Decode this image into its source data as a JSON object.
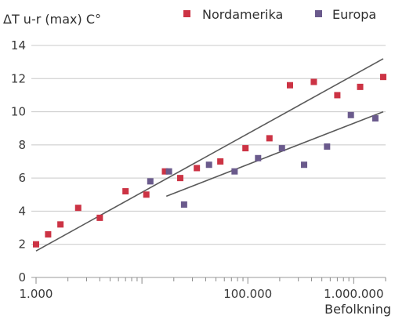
{
  "chart_data": {
    "type": "scatter",
    "title": "",
    "ylabel": "ΔT u-r (max) C°",
    "xlabel": "Befolkning",
    "x_scale": "log",
    "xlim": [
      1000,
      2000000
    ],
    "ylim": [
      0,
      14
    ],
    "y_ticks": [
      0,
      2,
      4,
      6,
      8,
      10,
      12,
      14
    ],
    "y_tick_labels": [
      "0",
      "2",
      "4",
      "6",
      "8",
      "10",
      "12",
      "14"
    ],
    "x_ticks": [
      1000,
      100000,
      1000000
    ],
    "x_tick_labels": [
      "1.000",
      "100.000",
      "1.000.000"
    ],
    "grid": "horizontal",
    "legend_position": "top-right",
    "series": [
      {
        "name": "Nordamerika",
        "color": "#cc3344",
        "points": [
          [
            1000,
            2.0
          ],
          [
            1300,
            2.6
          ],
          [
            1700,
            3.2
          ],
          [
            2500,
            4.2
          ],
          [
            4000,
            3.6
          ],
          [
            7000,
            5.2
          ],
          [
            11000,
            5.0
          ],
          [
            16500,
            6.4
          ],
          [
            23000,
            6.0
          ],
          [
            33000,
            6.6
          ],
          [
            55000,
            7.0
          ],
          [
            95000,
            7.8
          ],
          [
            160000,
            8.4
          ],
          [
            250000,
            11.6
          ],
          [
            420000,
            11.8
          ],
          [
            700000,
            11.0
          ],
          [
            1150000,
            11.5
          ],
          [
            1900000,
            12.1
          ]
        ]
      },
      {
        "name": "Europa",
        "color": "#6a5a8c",
        "points": [
          [
            12000,
            5.8
          ],
          [
            18000,
            6.4
          ],
          [
            25000,
            4.4
          ],
          [
            43000,
            6.8
          ],
          [
            75000,
            6.4
          ],
          [
            125000,
            7.2
          ],
          [
            210000,
            7.8
          ],
          [
            340000,
            6.8
          ],
          [
            560000,
            7.9
          ],
          [
            940000,
            9.8
          ],
          [
            1600000,
            9.6
          ]
        ]
      }
    ],
    "trend_lines": [
      {
        "series": "Nordamerika",
        "from": [
          1000,
          1.6
        ],
        "to": [
          1900000,
          13.2
        ]
      },
      {
        "series": "Europa",
        "from": [
          17000,
          4.9
        ],
        "to": [
          1900000,
          10.0
        ]
      }
    ]
  }
}
